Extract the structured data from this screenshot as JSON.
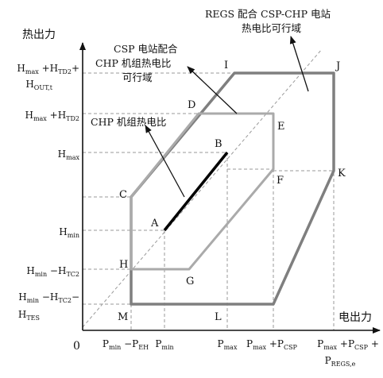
{
  "axes": {
    "y_title": "热出力",
    "x_title": "电出力",
    "origin": "0"
  },
  "y_ticks": [
    {
      "id": "y1",
      "parts": [
        [
          "H",
          "n"
        ],
        [
          "max",
          "s"
        ],
        [
          " +",
          "n"
        ],
        [
          "H",
          "n"
        ],
        [
          "TD2",
          "s"
        ],
        [
          "+",
          "n"
        ]
      ],
      "parts2": [
        [
          "H",
          "n"
        ],
        [
          "OUT,t",
          "s"
        ]
      ]
    },
    {
      "id": "y2",
      "parts": [
        [
          "H",
          "n"
        ],
        [
          "max",
          "s"
        ],
        [
          " +",
          "n"
        ],
        [
          "H",
          "n"
        ],
        [
          "TD2",
          "s"
        ]
      ]
    },
    {
      "id": "y3",
      "parts": [
        [
          "H",
          "n"
        ],
        [
          "max",
          "s"
        ]
      ]
    },
    {
      "id": "y4",
      "parts": [
        [
          "H",
          "n"
        ],
        [
          "min",
          "s"
        ]
      ]
    },
    {
      "id": "y5",
      "parts": [
        [
          "H",
          "n"
        ],
        [
          "min",
          "s"
        ],
        [
          " −",
          "n"
        ],
        [
          "H",
          "n"
        ],
        [
          "TC2",
          "s"
        ]
      ]
    },
    {
      "id": "y6",
      "parts": [
        [
          "H",
          "n"
        ],
        [
          "min",
          "s"
        ],
        [
          " −",
          "n"
        ],
        [
          "H",
          "n"
        ],
        [
          "TC2",
          "s"
        ],
        [
          "−",
          "n"
        ]
      ],
      "parts2": [
        [
          "H",
          "n"
        ],
        [
          "TES",
          "s"
        ]
      ]
    }
  ],
  "x_ticks": [
    {
      "id": "x1",
      "parts": [
        [
          "P",
          "n"
        ],
        [
          "min",
          "s"
        ],
        [
          " −",
          "n"
        ],
        [
          "P",
          "n"
        ],
        [
          "EH",
          "s"
        ]
      ]
    },
    {
      "id": "x2",
      "parts": [
        [
          "P",
          "n"
        ],
        [
          "min",
          "s"
        ]
      ]
    },
    {
      "id": "x3",
      "parts": [
        [
          "P",
          "n"
        ],
        [
          "max",
          "s"
        ]
      ]
    },
    {
      "id": "x4",
      "parts": [
        [
          "P",
          "n"
        ],
        [
          "max",
          "s"
        ],
        [
          " +",
          "n"
        ],
        [
          "P",
          "n"
        ],
        [
          "CSP",
          "s"
        ]
      ]
    },
    {
      "id": "x5",
      "parts": [
        [
          "P",
          "n"
        ],
        [
          "max",
          "s"
        ],
        [
          " +",
          "n"
        ],
        [
          "P",
          "n"
        ],
        [
          "CSP",
          "s"
        ],
        [
          " +",
          "n"
        ]
      ],
      "parts2": [
        [
          "P",
          "n"
        ],
        [
          "REGS,e",
          "s"
        ]
      ]
    }
  ],
  "points": [
    "A",
    "B",
    "C",
    "D",
    "E",
    "F",
    "G",
    "H",
    "I",
    "J",
    "K",
    "L",
    "M"
  ],
  "annotations": {
    "regs_line1": "REGS 配合 CSP-CHP 电站",
    "regs_line2": "热电比可行域",
    "csp_line1": "CSP 电站配合",
    "csp_line2": "CHP 机组热电比",
    "csp_line3": "可行域",
    "chp": "CHP 机组热电比"
  },
  "colors": {
    "outer_region": "#7f7f7f",
    "middle_region": "#aaaaaa",
    "chp_segment": "#000000",
    "grid": "#9a9a9a"
  }
}
